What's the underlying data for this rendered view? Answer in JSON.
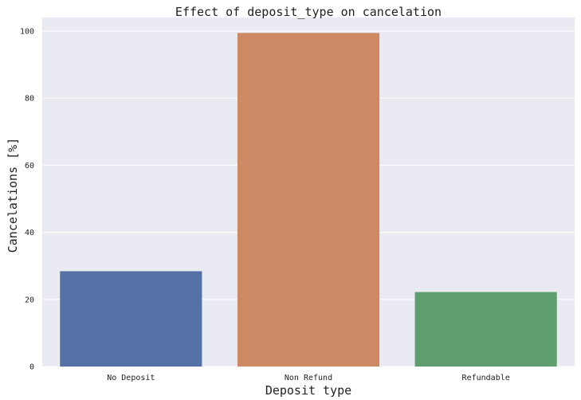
{
  "chart_data": {
    "type": "bar",
    "title": "Effect of deposit_type on cancelation",
    "xlabel": "Deposit type",
    "ylabel": "Cancelations [%]",
    "categories": [
      "No Deposit",
      "Non Refund",
      "Refundable"
    ],
    "values": [
      28.4,
      99.4,
      22.2
    ],
    "colors": [
      "#5471a6",
      "#cd8963",
      "#5f9e6e"
    ],
    "ylim": [
      0,
      104
    ],
    "yticks": [
      0,
      20,
      40,
      60,
      80,
      100
    ],
    "ytick_labels": [
      "0",
      "20",
      "40",
      "60",
      "80",
      "100"
    ],
    "grid": true,
    "background": "#eaeaf2",
    "grid_color": "#ffffff"
  }
}
